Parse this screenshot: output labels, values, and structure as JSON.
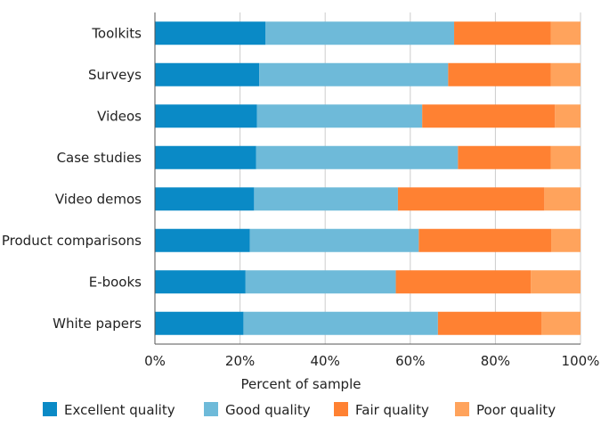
{
  "chart_data": {
    "type": "bar",
    "orientation": "horizontal",
    "stacked": true,
    "categories": [
      "Toolkits",
      "Surveys",
      "Videos",
      "Case studies",
      "Video demos",
      "Product comparisons",
      "E-books",
      "White papers"
    ],
    "series": [
      {
        "name": "Excellent quality",
        "color": "#0a8ac6",
        "values": [
          26,
          24.5,
          24,
          23.8,
          23.3,
          22.3,
          21.3,
          20.8
        ]
      },
      {
        "name": "Good quality",
        "color": "#6ebad9",
        "values": [
          44.3,
          44.4,
          38.8,
          47.4,
          33.8,
          39.7,
          35.3,
          45.7
        ]
      },
      {
        "name": "Fair quality",
        "color": "#ff8132",
        "values": [
          22.7,
          24.1,
          31.2,
          21.8,
          34.4,
          31.1,
          31.7,
          24.3
        ]
      },
      {
        "name": "Poor quality",
        "color": "#ffa35c",
        "values": [
          7,
          7,
          6,
          7,
          8.5,
          6.9,
          11.7,
          9.2
        ]
      }
    ],
    "x_ticks": [
      "0%",
      "20%",
      "40%",
      "60%",
      "80%",
      "100%"
    ],
    "xlim": [
      0,
      100
    ],
    "xlabel": "Percent of sample",
    "grid": true,
    "legend": "bottom"
  }
}
